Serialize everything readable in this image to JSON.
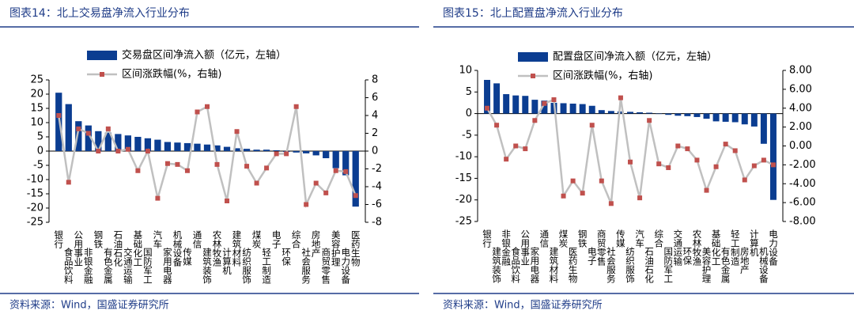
{
  "chart_data": [
    {
      "type": "combo",
      "title": "图表14：北上交易盘净流入行业分布",
      "source": "资料来源：Wind，国盛证券研究所",
      "categories": [
        "银行",
        "食品饮料",
        "公用事业",
        "非银金融",
        "钢铁",
        "有色金属",
        "石油石化",
        "交通运输",
        "基础化工",
        "国防军工",
        "汽车",
        "家用电器",
        "机械设备",
        "传媒",
        "通信",
        "建筑装饰",
        "农林牧渔",
        "计算机",
        "建筑材料",
        "纺织服饰",
        "煤炭",
        "轻工制造",
        "电子",
        "环保",
        "综合",
        "社会服务",
        "房地产",
        "商贸零售",
        "美容护理",
        "电力设备",
        "医药生物"
      ],
      "series": [
        {
          "name": "交易盘区间净流入额（亿元，左轴）",
          "type": "bar",
          "color": "#0b3d91",
          "values": [
            20.5,
            16.5,
            10.5,
            9,
            7,
            6.5,
            6,
            5.5,
            5,
            4.5,
            4,
            3.2,
            3,
            2.8,
            2.6,
            2.3,
            2,
            1.5,
            1,
            0.8,
            0.5,
            0.5,
            0.3,
            -0.3,
            -0.5,
            -0.8,
            -1.5,
            -2.5,
            -6,
            -8.5,
            -19.5
          ]
        },
        {
          "name": "区间涨跌幅(%，右轴)",
          "type": "line",
          "axis": "y2",
          "color": "#c0c0c0",
          "marker_color": "#c0504d",
          "values": [
            4,
            -3.5,
            2.5,
            2,
            0,
            2.5,
            0,
            0.2,
            -2.2,
            0,
            -5.3,
            -1.4,
            -1.5,
            -2.2,
            4.4,
            5,
            -1.5,
            -5.6,
            2.2,
            -1.7,
            -3.6,
            -1.9,
            -0.3,
            -0.3,
            5,
            -6,
            -3.6,
            -4.7,
            -2.2,
            -2.3,
            -5
          ]
        }
      ],
      "ylim": [
        -25,
        25
      ],
      "yticks": [
        25,
        20,
        15,
        10,
        5,
        0,
        -5,
        -10,
        -15,
        -20,
        -25
      ],
      "y2lim": [
        -8,
        8
      ],
      "y2ticks": [
        8,
        6,
        4,
        2,
        0,
        -2,
        -4,
        -6,
        -8
      ]
    },
    {
      "type": "combo",
      "title": "图表15：北上配置盘净流入行业分布",
      "source": "资料来源：Wind，国盛证券研究所",
      "categories": [
        "银行",
        "建筑装饰",
        "非银金融",
        "食品饮料",
        "公用事业",
        "家用电器",
        "通信",
        "建筑材料",
        "煤炭",
        "医药生物",
        "钢铁",
        "电子",
        "商贸零售",
        "社会服务",
        "传媒",
        "纺织服饰",
        "汽车",
        "石油石化",
        "综合",
        "国防军工",
        "交通运输",
        "环保",
        "农林牧渔",
        "美容护理",
        "基础化工",
        "有色金属",
        "轻工制造",
        "房地产",
        "计算机",
        "机械设备",
        "电力设备"
      ],
      "series": [
        {
          "name": "配置盘区间净流入额（亿元，左轴）",
          "type": "bar",
          "color": "#0b3d91",
          "values": [
            7.8,
            7,
            4.5,
            4.2,
            4.1,
            3.2,
            3,
            2.5,
            2.4,
            2.3,
            2.2,
            1.8,
            0.8,
            0.6,
            0.5,
            0.4,
            0.3,
            0.2,
            -0.1,
            -0.3,
            -0.5,
            -0.6,
            -0.8,
            -1.2,
            -1.8,
            -1.9,
            -2,
            -2.5,
            -3,
            -7,
            -20
          ]
        },
        {
          "name": "区间涨跌幅(%，右轴)",
          "type": "line",
          "axis": "y2",
          "color": "#c0c0c0",
          "marker_color": "#c0504d",
          "values": [
            4,
            2.2,
            -1.4,
            0,
            -0.3,
            2.7,
            4.5,
            4.9,
            -5.3,
            -3.7,
            -5,
            2.2,
            -3.7,
            -6.1,
            5.1,
            -1.7,
            -5.5,
            2.7,
            -1.9,
            -2.3,
            0,
            -0.3,
            -1.5,
            -4.7,
            -2.2,
            0.2,
            -0.5,
            -3.6,
            -2.1,
            -1.5,
            -2
          ]
        }
      ],
      "ylim": [
        -25,
        10
      ],
      "yticks": [
        10,
        5,
        0,
        -5,
        -10,
        -15,
        -20,
        -25
      ],
      "y2lim": [
        -8,
        8
      ],
      "y2ticks": [
        {
          "value": 8,
          "label": "8.00"
        },
        {
          "value": 6,
          "label": "6.00"
        },
        {
          "value": 4,
          "label": "4.00"
        },
        {
          "value": 2,
          "label": "2.00"
        },
        {
          "value": 0,
          "label": "0.00"
        },
        {
          "value": -2,
          "label": "-2.00"
        },
        {
          "value": -4,
          "label": "-4.00"
        },
        {
          "value": -6,
          "label": "-6.00"
        },
        {
          "value": -8,
          "label": "-8.00"
        }
      ]
    }
  ]
}
